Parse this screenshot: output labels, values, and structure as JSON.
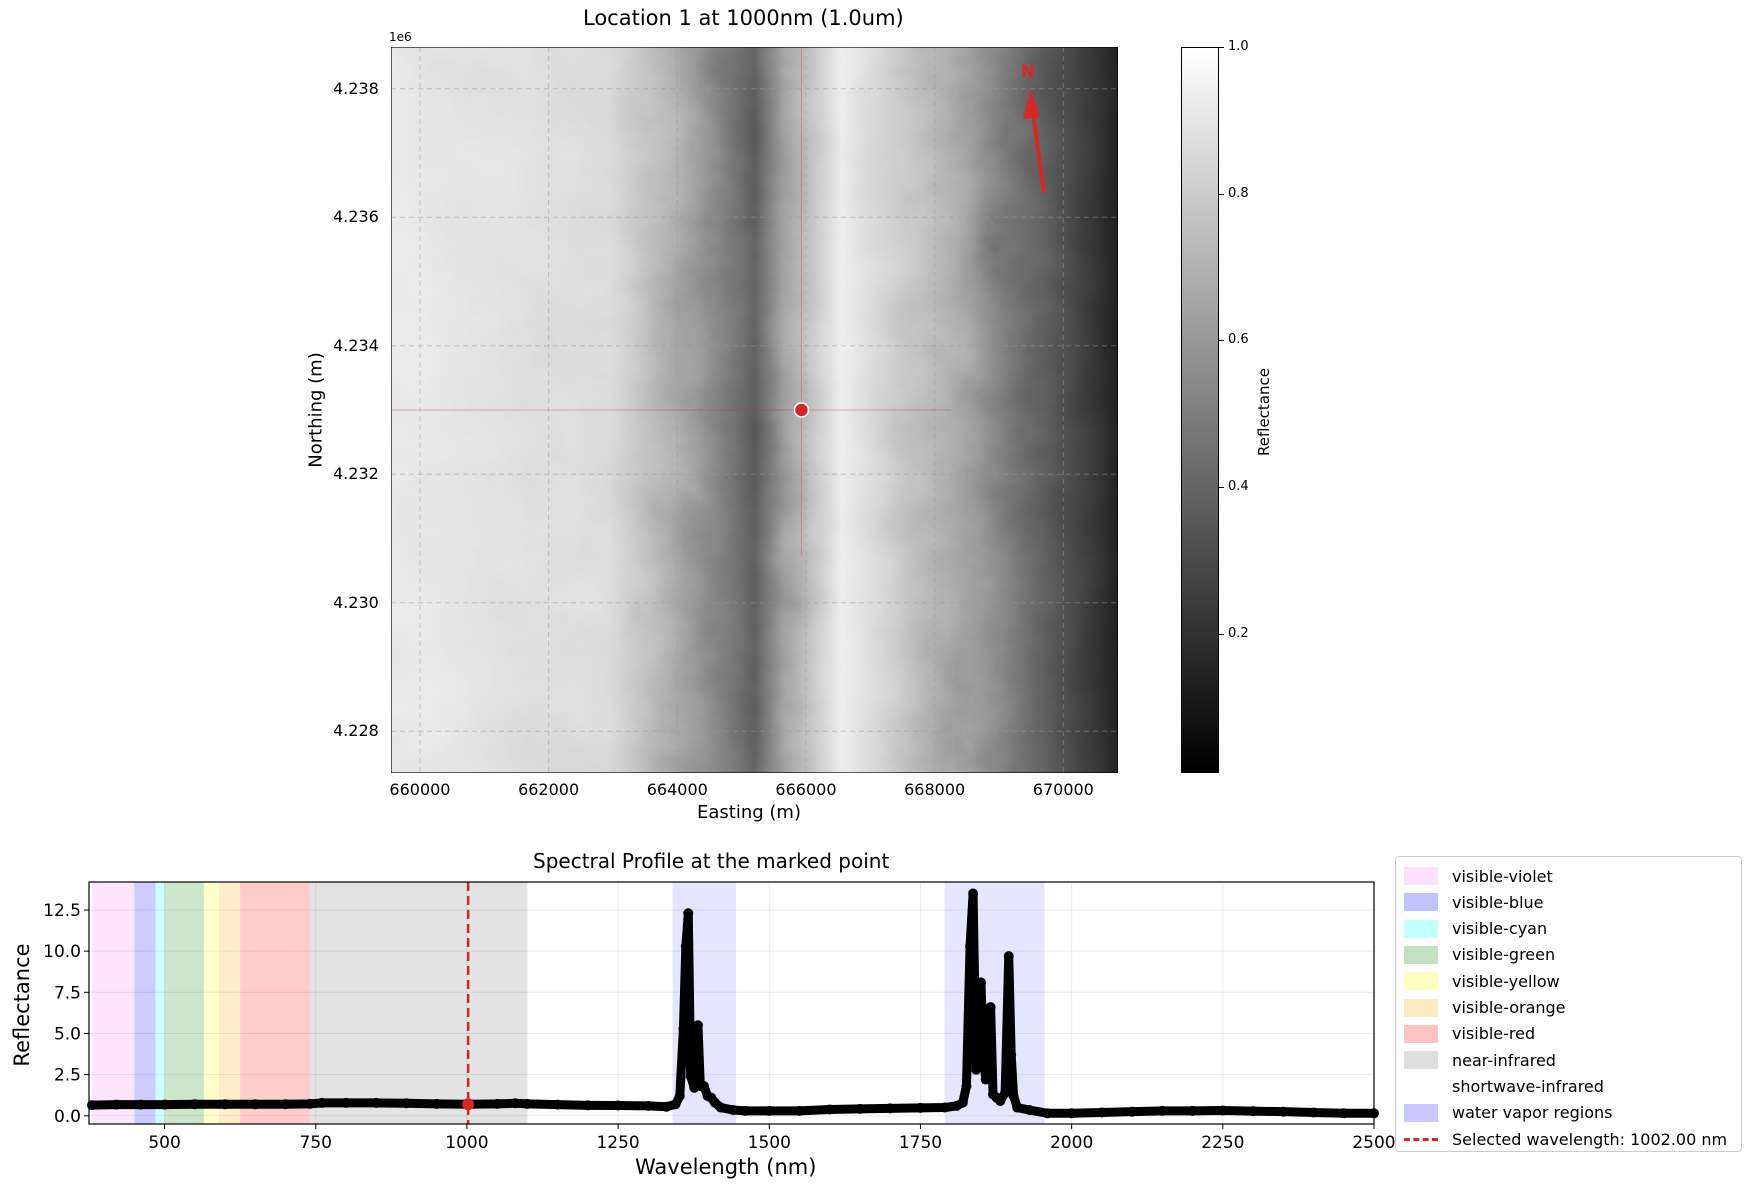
{
  "map": {
    "title": "Location 1 at 1000nm (1.0um)",
    "xlabel": "Easting (m)",
    "ylabel": "Northing (m)",
    "offset_label": "1e6",
    "xticks": [
      "660000",
      "662000",
      "664000",
      "666000",
      "668000",
      "670000"
    ],
    "xtick_values": [
      660000,
      662000,
      664000,
      666000,
      668000,
      670000
    ],
    "yticks": [
      "4.238",
      "4.236",
      "4.234",
      "4.232",
      "4.230",
      "4.228"
    ],
    "ytick_values": [
      4.238,
      4.236,
      4.234,
      4.232,
      4.23,
      4.228
    ],
    "xlim": [
      659550,
      670850
    ],
    "ylim": [
      4.22735,
      4.23865
    ],
    "marker": {
      "easting": 665930,
      "northing": 4.233,
      "color": "#d62728"
    },
    "north_label": "N",
    "north_color": "#d62728",
    "colorbar": {
      "label": "Reflectance",
      "ticks": [
        "0.2",
        "0.4",
        "0.6",
        "0.8",
        "1.0"
      ],
      "tick_values": [
        0.2,
        0.4,
        0.6,
        0.8,
        1.0
      ],
      "range": [
        0.01,
        1.0
      ]
    }
  },
  "chart_data": {
    "type": "scatter",
    "title": "Spectral Profile at the marked point",
    "xlabel": "Wavelength (nm)",
    "ylabel": "Reflectance",
    "xlim": [
      375,
      2500
    ],
    "ylim": [
      -0.5,
      14.2
    ],
    "xticks": [
      "500",
      "750",
      "1000",
      "1250",
      "1500",
      "1750",
      "2000",
      "2250",
      "2500"
    ],
    "xtick_values": [
      500,
      750,
      1000,
      1250,
      1500,
      1750,
      2000,
      2250,
      2500
    ],
    "yticks": [
      "0.0",
      "2.5",
      "5.0",
      "7.5",
      "10.0",
      "12.5"
    ],
    "ytick_values": [
      0,
      2.5,
      5,
      7.5,
      10,
      12.5
    ],
    "grid": true,
    "regions": [
      {
        "name": "visible-violet",
        "range": [
          380,
          450
        ],
        "color": "#ee82ee",
        "alpha": 0.2
      },
      {
        "name": "visible-blue",
        "range": [
          450,
          485
        ],
        "color": "#0000ff",
        "alpha": 0.2
      },
      {
        "name": "visible-cyan",
        "range": [
          485,
          500
        ],
        "color": "#00ffff",
        "alpha": 0.2
      },
      {
        "name": "visible-green",
        "range": [
          500,
          565
        ],
        "color": "#008000",
        "alpha": 0.2
      },
      {
        "name": "visible-yellow",
        "range": [
          565,
          590
        ],
        "color": "#ffff00",
        "alpha": 0.2
      },
      {
        "name": "visible-orange",
        "range": [
          590,
          625
        ],
        "color": "#ffa500",
        "alpha": 0.2
      },
      {
        "name": "visible-red",
        "range": [
          625,
          740
        ],
        "color": "#ff0000",
        "alpha": 0.2
      },
      {
        "name": "near-infrared",
        "range": [
          740,
          1100
        ],
        "color": "#808080",
        "alpha": 0.22
      },
      {
        "name": "shortwave-infrared",
        "range": [
          1100,
          2500
        ],
        "color": "#ffffff",
        "alpha": 0
      },
      {
        "name": "water vapor regions",
        "range": [
          1340,
          1445
        ],
        "color": "#0000ff",
        "alpha": 0.1
      },
      {
        "name": "",
        "range": [
          1790,
          1955
        ],
        "color": "#0000ff",
        "alpha": 0.1
      }
    ],
    "selected": {
      "label": "Selected wavelength: 1002.00 nm",
      "wavelength": 1002,
      "value": 0.7,
      "color": "#d62728"
    },
    "points": [
      [
        380,
        0.65
      ],
      [
        420,
        0.68
      ],
      [
        460,
        0.68
      ],
      [
        500,
        0.68
      ],
      [
        550,
        0.7
      ],
      [
        600,
        0.7
      ],
      [
        650,
        0.7
      ],
      [
        700,
        0.7
      ],
      [
        740,
        0.72
      ],
      [
        760,
        0.78
      ],
      [
        800,
        0.78
      ],
      [
        850,
        0.78
      ],
      [
        900,
        0.76
      ],
      [
        950,
        0.72
      ],
      [
        1000,
        0.7
      ],
      [
        1050,
        0.72
      ],
      [
        1080,
        0.76
      ],
      [
        1100,
        0.72
      ],
      [
        1150,
        0.68
      ],
      [
        1200,
        0.63
      ],
      [
        1250,
        0.62
      ],
      [
        1300,
        0.6
      ],
      [
        1330,
        0.55
      ],
      [
        1345,
        0.7
      ],
      [
        1352,
        1.2
      ],
      [
        1358,
        5.3
      ],
      [
        1362,
        10.3
      ],
      [
        1366,
        12.3
      ],
      [
        1370,
        2.4
      ],
      [
        1376,
        1.7
      ],
      [
        1382,
        5.5
      ],
      [
        1386,
        1.8
      ],
      [
        1392,
        1.8
      ],
      [
        1398,
        1.2
      ],
      [
        1404,
        1.1
      ],
      [
        1410,
        0.8
      ],
      [
        1420,
        0.5
      ],
      [
        1440,
        0.35
      ],
      [
        1460,
        0.3
      ],
      [
        1500,
        0.3
      ],
      [
        1550,
        0.3
      ],
      [
        1600,
        0.38
      ],
      [
        1650,
        0.42
      ],
      [
        1700,
        0.45
      ],
      [
        1750,
        0.48
      ],
      [
        1790,
        0.5
      ],
      [
        1810,
        0.6
      ],
      [
        1820,
        0.8
      ],
      [
        1826,
        1.8
      ],
      [
        1832,
        10.3
      ],
      [
        1837,
        13.5
      ],
      [
        1842,
        2.8
      ],
      [
        1846,
        4.7
      ],
      [
        1850,
        8.1
      ],
      [
        1854,
        3.7
      ],
      [
        1858,
        2.2
      ],
      [
        1862,
        4.1
      ],
      [
        1866,
        6.6
      ],
      [
        1870,
        1.3
      ],
      [
        1876,
        1.1
      ],
      [
        1882,
        0.9
      ],
      [
        1890,
        1.4
      ],
      [
        1896,
        9.7
      ],
      [
        1900,
        3.7
      ],
      [
        1904,
        1.2
      ],
      [
        1910,
        0.5
      ],
      [
        1930,
        0.35
      ],
      [
        1960,
        0.15
      ],
      [
        2000,
        0.15
      ],
      [
        2050,
        0.2
      ],
      [
        2100,
        0.25
      ],
      [
        2150,
        0.3
      ],
      [
        2200,
        0.3
      ],
      [
        2250,
        0.32
      ],
      [
        2300,
        0.28
      ],
      [
        2350,
        0.25
      ],
      [
        2400,
        0.2
      ],
      [
        2450,
        0.15
      ],
      [
        2500,
        0.15
      ]
    ]
  }
}
